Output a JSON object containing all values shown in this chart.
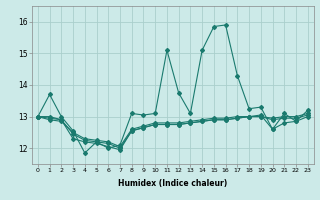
{
  "xlabel": "Humidex (Indice chaleur)",
  "x": [
    0,
    1,
    2,
    3,
    4,
    5,
    6,
    7,
    8,
    9,
    10,
    11,
    12,
    13,
    14,
    15,
    16,
    17,
    18,
    19,
    20,
    21,
    22,
    23
  ],
  "line1": [
    13.0,
    13.7,
    13.0,
    12.55,
    11.85,
    12.2,
    12.0,
    12.1,
    13.1,
    13.05,
    13.1,
    15.1,
    13.75,
    13.1,
    15.1,
    15.85,
    15.9,
    14.3,
    13.25,
    13.3,
    12.6,
    13.1,
    12.85,
    13.2
  ],
  "line2": [
    13.0,
    13.0,
    12.9,
    12.3,
    12.2,
    12.15,
    12.05,
    11.95,
    12.55,
    12.65,
    12.75,
    12.75,
    12.75,
    12.8,
    12.85,
    12.9,
    12.9,
    12.95,
    13.0,
    13.05,
    12.6,
    12.8,
    12.85,
    13.0
  ],
  "line3": [
    13.0,
    12.9,
    12.85,
    12.5,
    12.3,
    12.25,
    12.2,
    12.05,
    12.6,
    12.7,
    12.8,
    12.8,
    12.8,
    12.85,
    12.9,
    12.95,
    12.95,
    13.0,
    13.0,
    13.0,
    12.95,
    13.0,
    13.0,
    13.1
  ],
  "line4": [
    13.0,
    12.95,
    12.9,
    12.45,
    12.25,
    12.2,
    12.15,
    12.0,
    12.55,
    12.65,
    12.75,
    12.75,
    12.75,
    12.8,
    12.85,
    12.9,
    12.9,
    12.95,
    13.0,
    13.0,
    12.9,
    12.95,
    12.95,
    13.05
  ],
  "color": "#1a7a6e",
  "bg_color": "#cceae8",
  "grid_color": "#aacfcc",
  "ylim": [
    11.5,
    16.5
  ],
  "yticks": [
    12,
    13,
    14,
    15,
    16
  ],
  "xticks": [
    0,
    1,
    2,
    3,
    4,
    5,
    6,
    7,
    8,
    9,
    10,
    11,
    12,
    13,
    14,
    15,
    16,
    17,
    18,
    19,
    20,
    21,
    22,
    23
  ]
}
